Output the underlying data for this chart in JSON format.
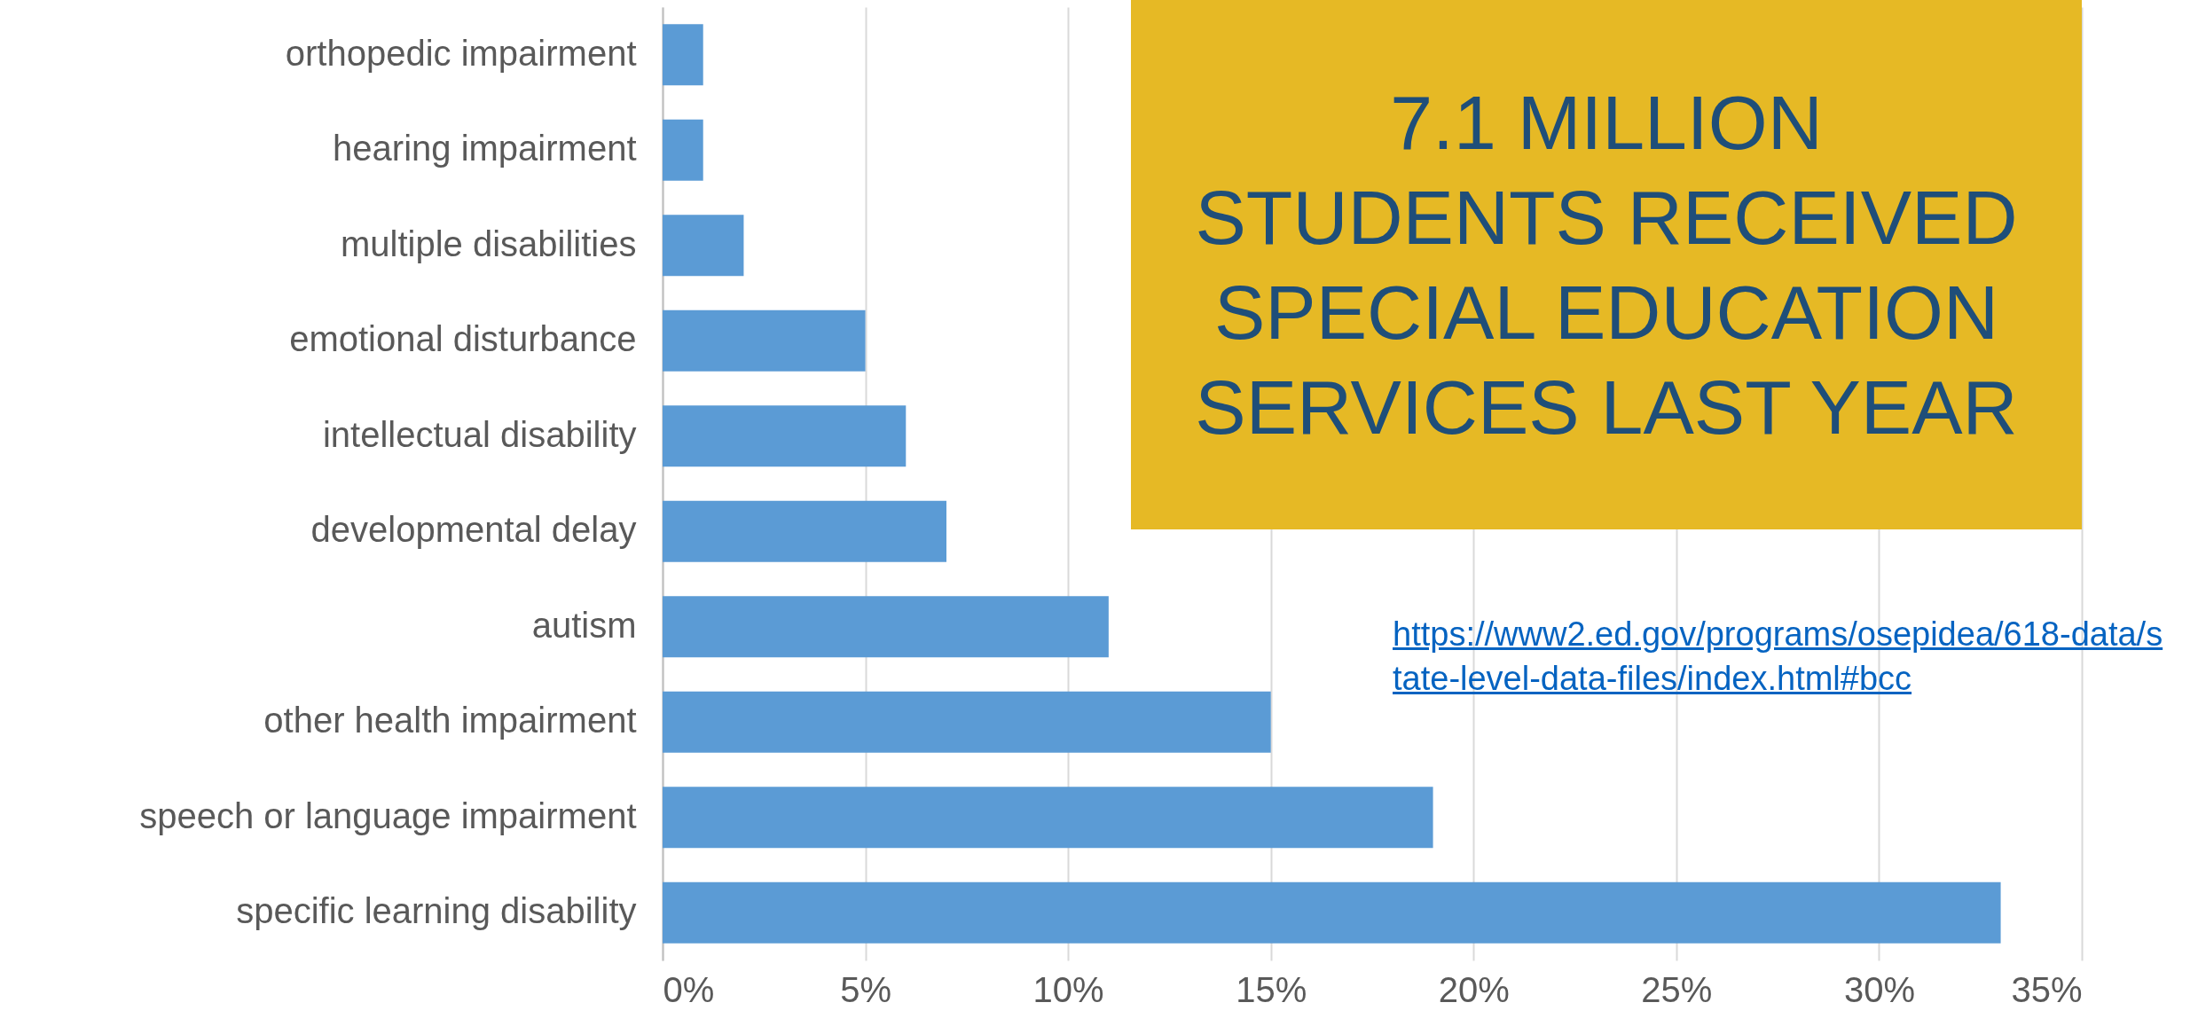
{
  "chart_data": {
    "type": "bar",
    "orientation": "horizontal",
    "categories": [
      "orthopedic impairment",
      "hearing impairment",
      "multiple disabilities",
      "emotional disturbance",
      "intellectual disability",
      "developmental delay",
      "autism",
      "other health impairment",
      "speech or language impairment",
      "specific learning disability"
    ],
    "values": [
      1,
      1,
      2,
      5,
      6,
      7,
      11,
      15,
      19,
      33
    ],
    "color": "#5b9bd5",
    "xlim": [
      0,
      35
    ],
    "xticks": [
      {
        "value": 0,
        "label": "0%"
      },
      {
        "value": 5,
        "label": "5%"
      },
      {
        "value": 10,
        "label": "10%"
      },
      {
        "value": 15,
        "label": "15%"
      },
      {
        "value": 20,
        "label": "20%"
      },
      {
        "value": 25,
        "label": "25%"
      },
      {
        "value": 30,
        "label": "30%"
      },
      {
        "value": 35,
        "label": "35%"
      }
    ],
    "grid": "x",
    "annotations": [
      "7.1 MILLION STUDENTS RECEIVED SPECIAL EDUCATION SERVICES LAST YEAR",
      "https://www2.ed.gov/programs/osepidea/618-data/state-level-data-files/index.html#bcc"
    ]
  }
}
